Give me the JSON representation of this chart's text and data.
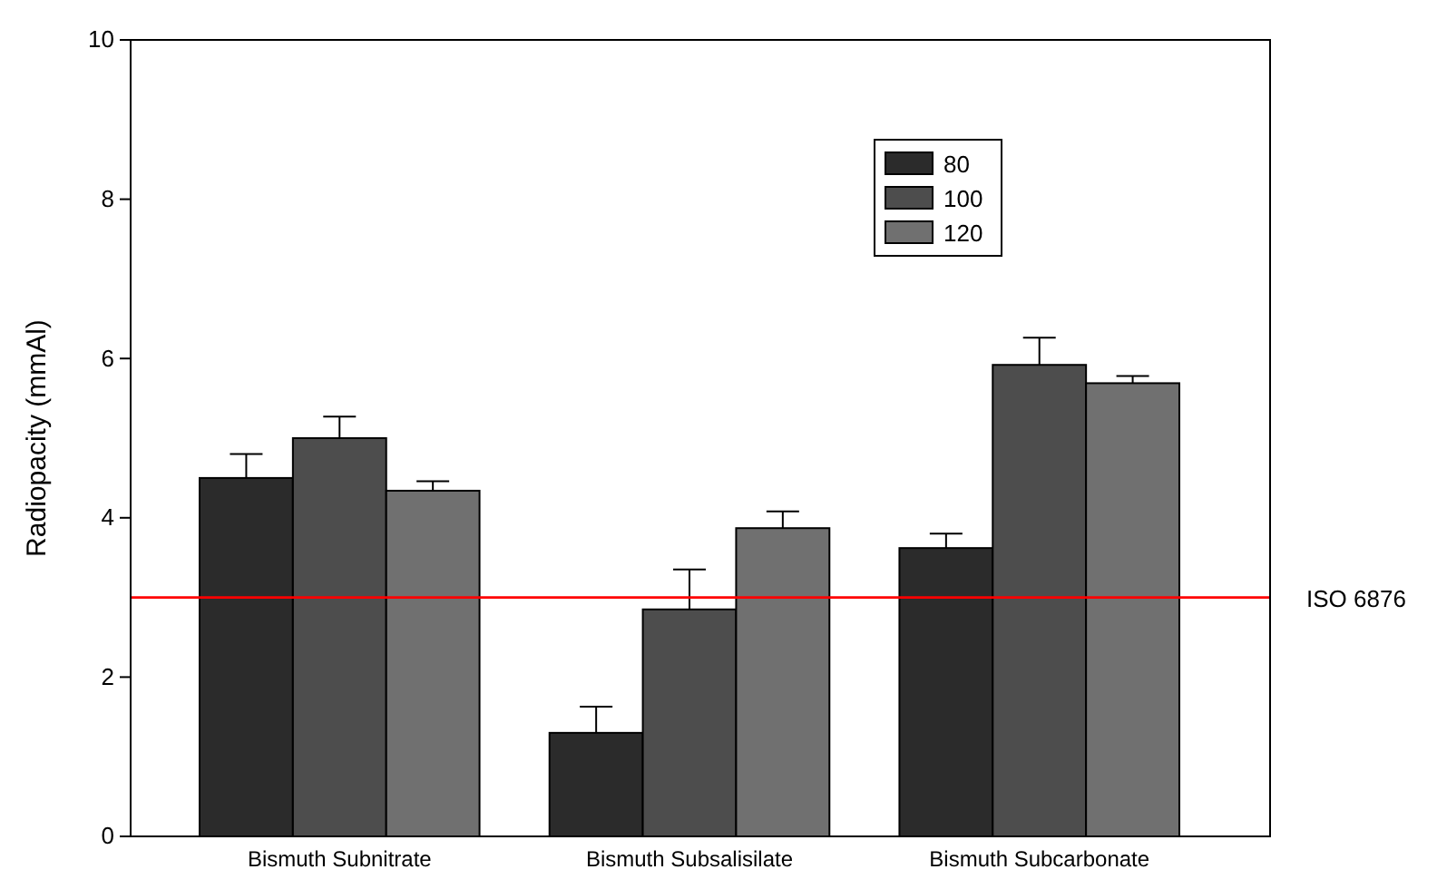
{
  "chart_data": {
    "type": "bar",
    "ylabel": "Radiopacity (mmAl)",
    "categories": [
      "Bismuth Subnitrate",
      "Bismuth Subsalisilate",
      "Bismuth Subcarbonate"
    ],
    "series": [
      {
        "name": "80",
        "color": "#2b2b2b",
        "values": [
          4.5,
          1.3,
          3.62
        ],
        "errors": [
          [
            4.5,
            4.8
          ],
          [
            1.3,
            1.63
          ],
          [
            3.62,
            3.8
          ]
        ]
      },
      {
        "name": "100",
        "color": "#4d4d4d",
        "values": [
          5.0,
          2.85,
          5.92
        ],
        "errors": [
          [
            5.0,
            5.27
          ],
          [
            2.85,
            3.35
          ],
          [
            5.92,
            6.26
          ]
        ]
      },
      {
        "name": "120",
        "color": "#707070",
        "values": [
          4.34,
          3.87,
          5.69
        ],
        "errors": [
          [
            4.34,
            4.46
          ],
          [
            3.87,
            4.08
          ],
          [
            5.69,
            5.78
          ]
        ]
      }
    ],
    "ylim": [
      0,
      10
    ],
    "yticks": [
      0,
      2,
      4,
      6,
      8,
      10
    ],
    "legend": "top right",
    "grid": false,
    "ref_lines": [
      {
        "axis": "y",
        "value": 3,
        "label": "ISO 6876",
        "color": "#ff0000"
      }
    ]
  }
}
